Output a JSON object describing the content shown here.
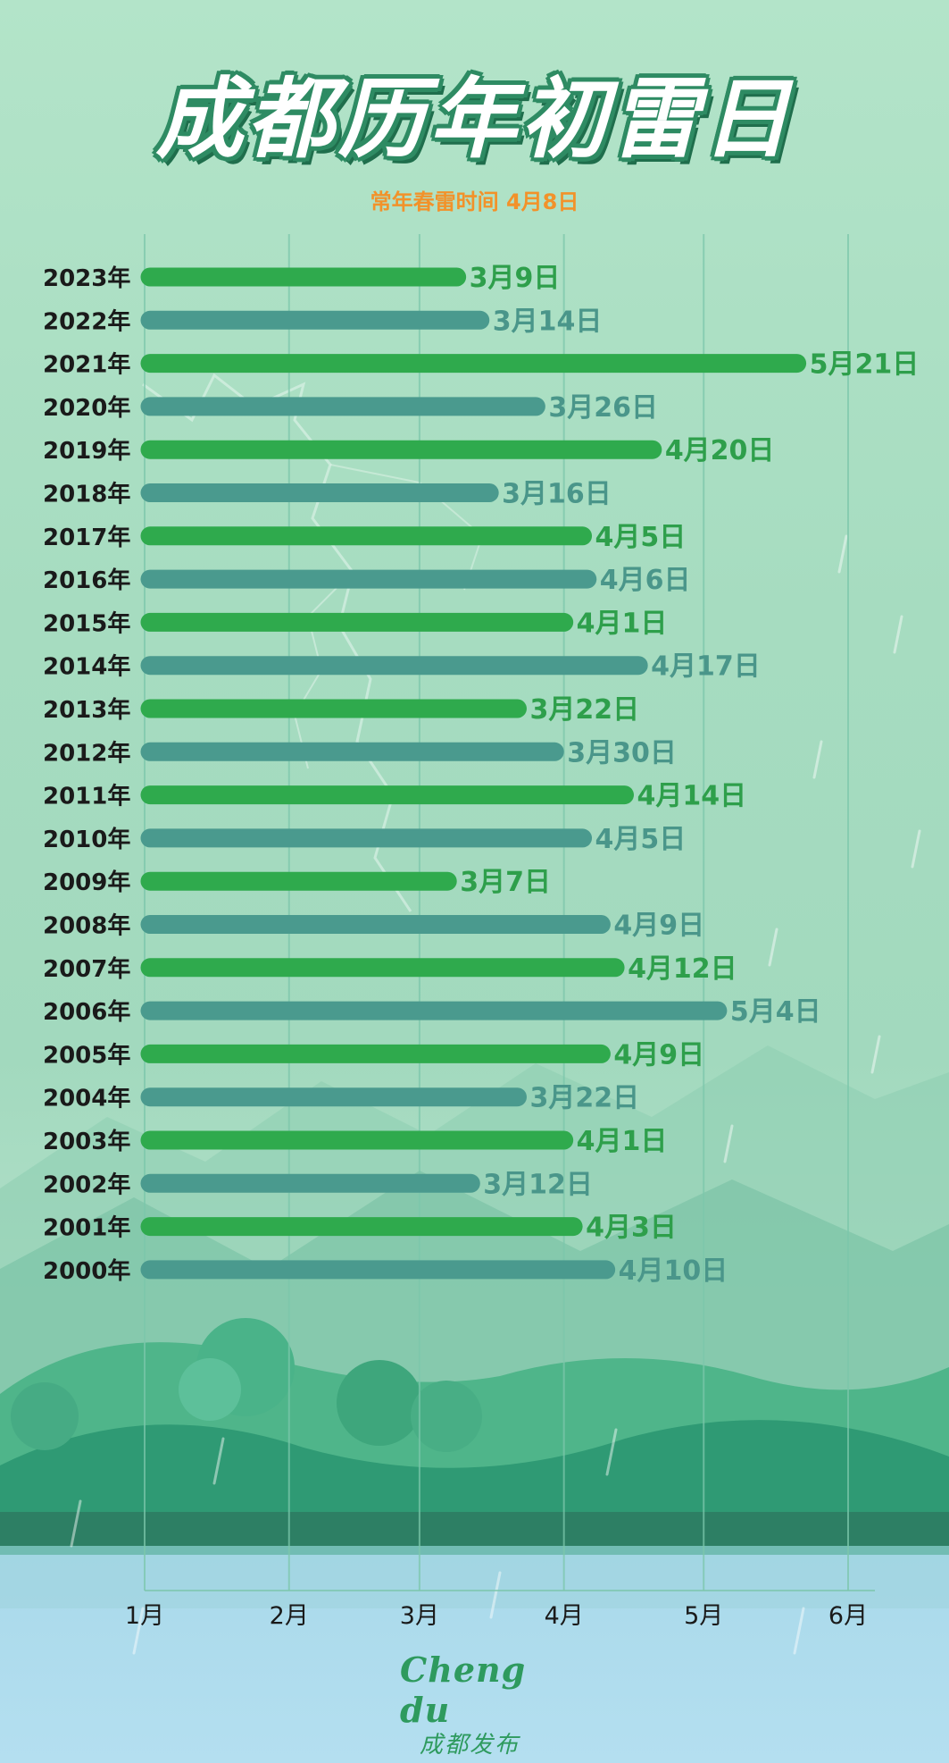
{
  "title": "成都历年初雷日",
  "subtitle": "常年春雷时间 4月8日",
  "colors": {
    "bar_odd": "#2faa4d",
    "bar_even": "#4a9a8e",
    "label_odd": "#2e9f4b",
    "label_even": "#4a968a",
    "grid": "#7cc7ab",
    "year_text": "#1a1a1a"
  },
  "chart_data": {
    "type": "bar",
    "orientation": "horizontal",
    "x_axis": {
      "ticks": [
        "1月",
        "2月",
        "3月",
        "4月",
        "5月",
        "6月"
      ],
      "range": [
        "1月1日",
        "6月1日"
      ]
    },
    "grid": true,
    "legend": "none",
    "series": [
      {
        "categories": [
          "2023年",
          "2022年",
          "2021年",
          "2020年",
          "2019年",
          "2018年",
          "2017年",
          "2016年",
          "2015年",
          "2014年",
          "2013年",
          "2012年",
          "2011年",
          "2010年",
          "2009年",
          "2008年",
          "2007年",
          "2006年",
          "2005年",
          "2004年",
          "2003年",
          "2002年",
          "2001年",
          "2000年"
        ],
        "values": [
          "3月9日",
          "3月14日",
          "5月21日",
          "3月26日",
          "4月20日",
          "3月16日",
          "4月5日",
          "4月6日",
          "4月1日",
          "4月17日",
          "3月22日",
          "3月30日",
          "4月14日",
          "4月5日",
          "3月7日",
          "4月9日",
          "4月12日",
          "5月4日",
          "4月9日",
          "3月22日",
          "4月1日",
          "3月12日",
          "4月3日",
          "4月10日"
        ]
      }
    ]
  },
  "logo": {
    "en": "Cheng du",
    "cn": "成都发布"
  }
}
